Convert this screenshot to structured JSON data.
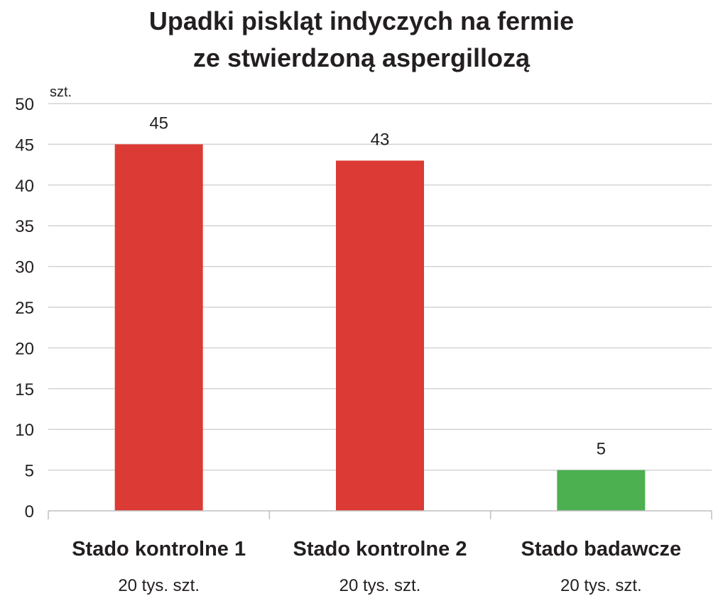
{
  "chart_data": {
    "type": "bar",
    "title": [
      "Upadki piskląt indyczych na fermie",
      "ze stwierdzoną aspergillozą"
    ],
    "ylabel": "szt.",
    "xlabel": "",
    "ylim": [
      0,
      50
    ],
    "yticks": [
      0,
      5,
      10,
      15,
      20,
      25,
      30,
      35,
      40,
      45,
      50
    ],
    "grid": true,
    "categories": [
      "Stado kontrolne 1",
      "Stado kontrolne 2",
      "Stado badawcze"
    ],
    "category_sublabels": [
      "20 tys. szt.",
      "20 tys. szt.",
      "20 tys. szt."
    ],
    "values": [
      45,
      43,
      5
    ],
    "data_labels": [
      "45",
      "43",
      "5"
    ],
    "bar_colors": [
      "#dc3a34",
      "#dc3a34",
      "#4caf50"
    ]
  },
  "colors": {
    "grid": "#d3d3d3",
    "axis": "#bfbfbf",
    "text": "#231f20"
  }
}
